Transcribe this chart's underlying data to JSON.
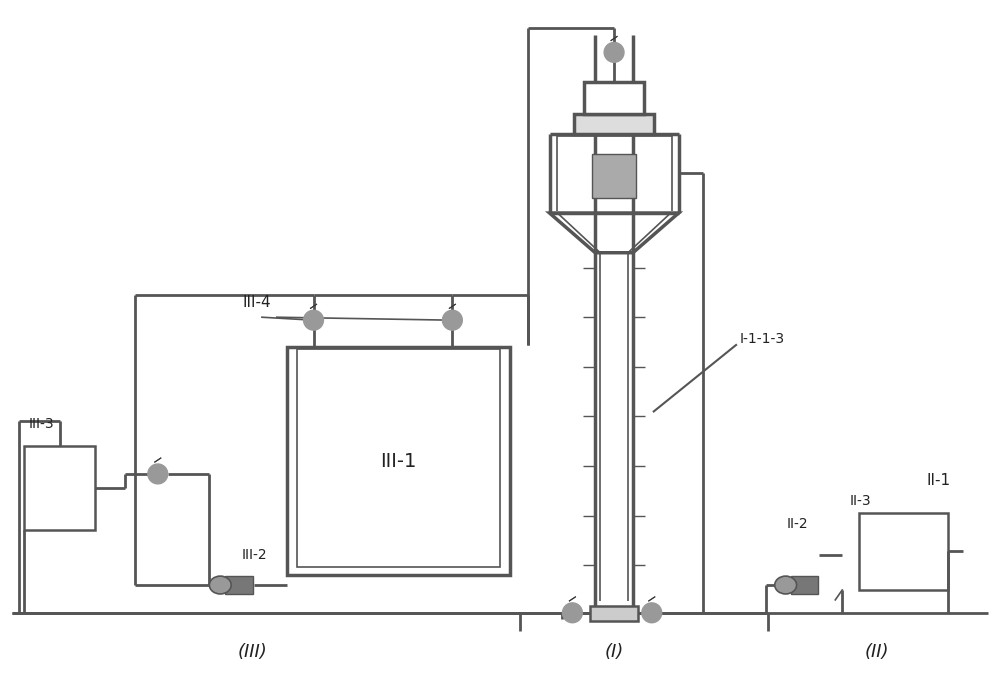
{
  "bg_color": "#ffffff",
  "lc": "#555555",
  "gray": "#999999",
  "dark_gray": "#777777",
  "light_gray": "#cccccc",
  "text_color": "#222222",
  "labels": {
    "III_1": "III-1",
    "III_2": "III-2",
    "III_3": "III-3",
    "III_4": "III-4",
    "II_1": "II-1",
    "II_2": "II-2",
    "II_3": "II-3",
    "I_1_1_3": "I-1-1-3",
    "section_I": "(I)",
    "section_II": "(II)",
    "section_III": "(III)"
  },
  "figsize": [
    10.0,
    6.87
  ],
  "dpi": 100
}
